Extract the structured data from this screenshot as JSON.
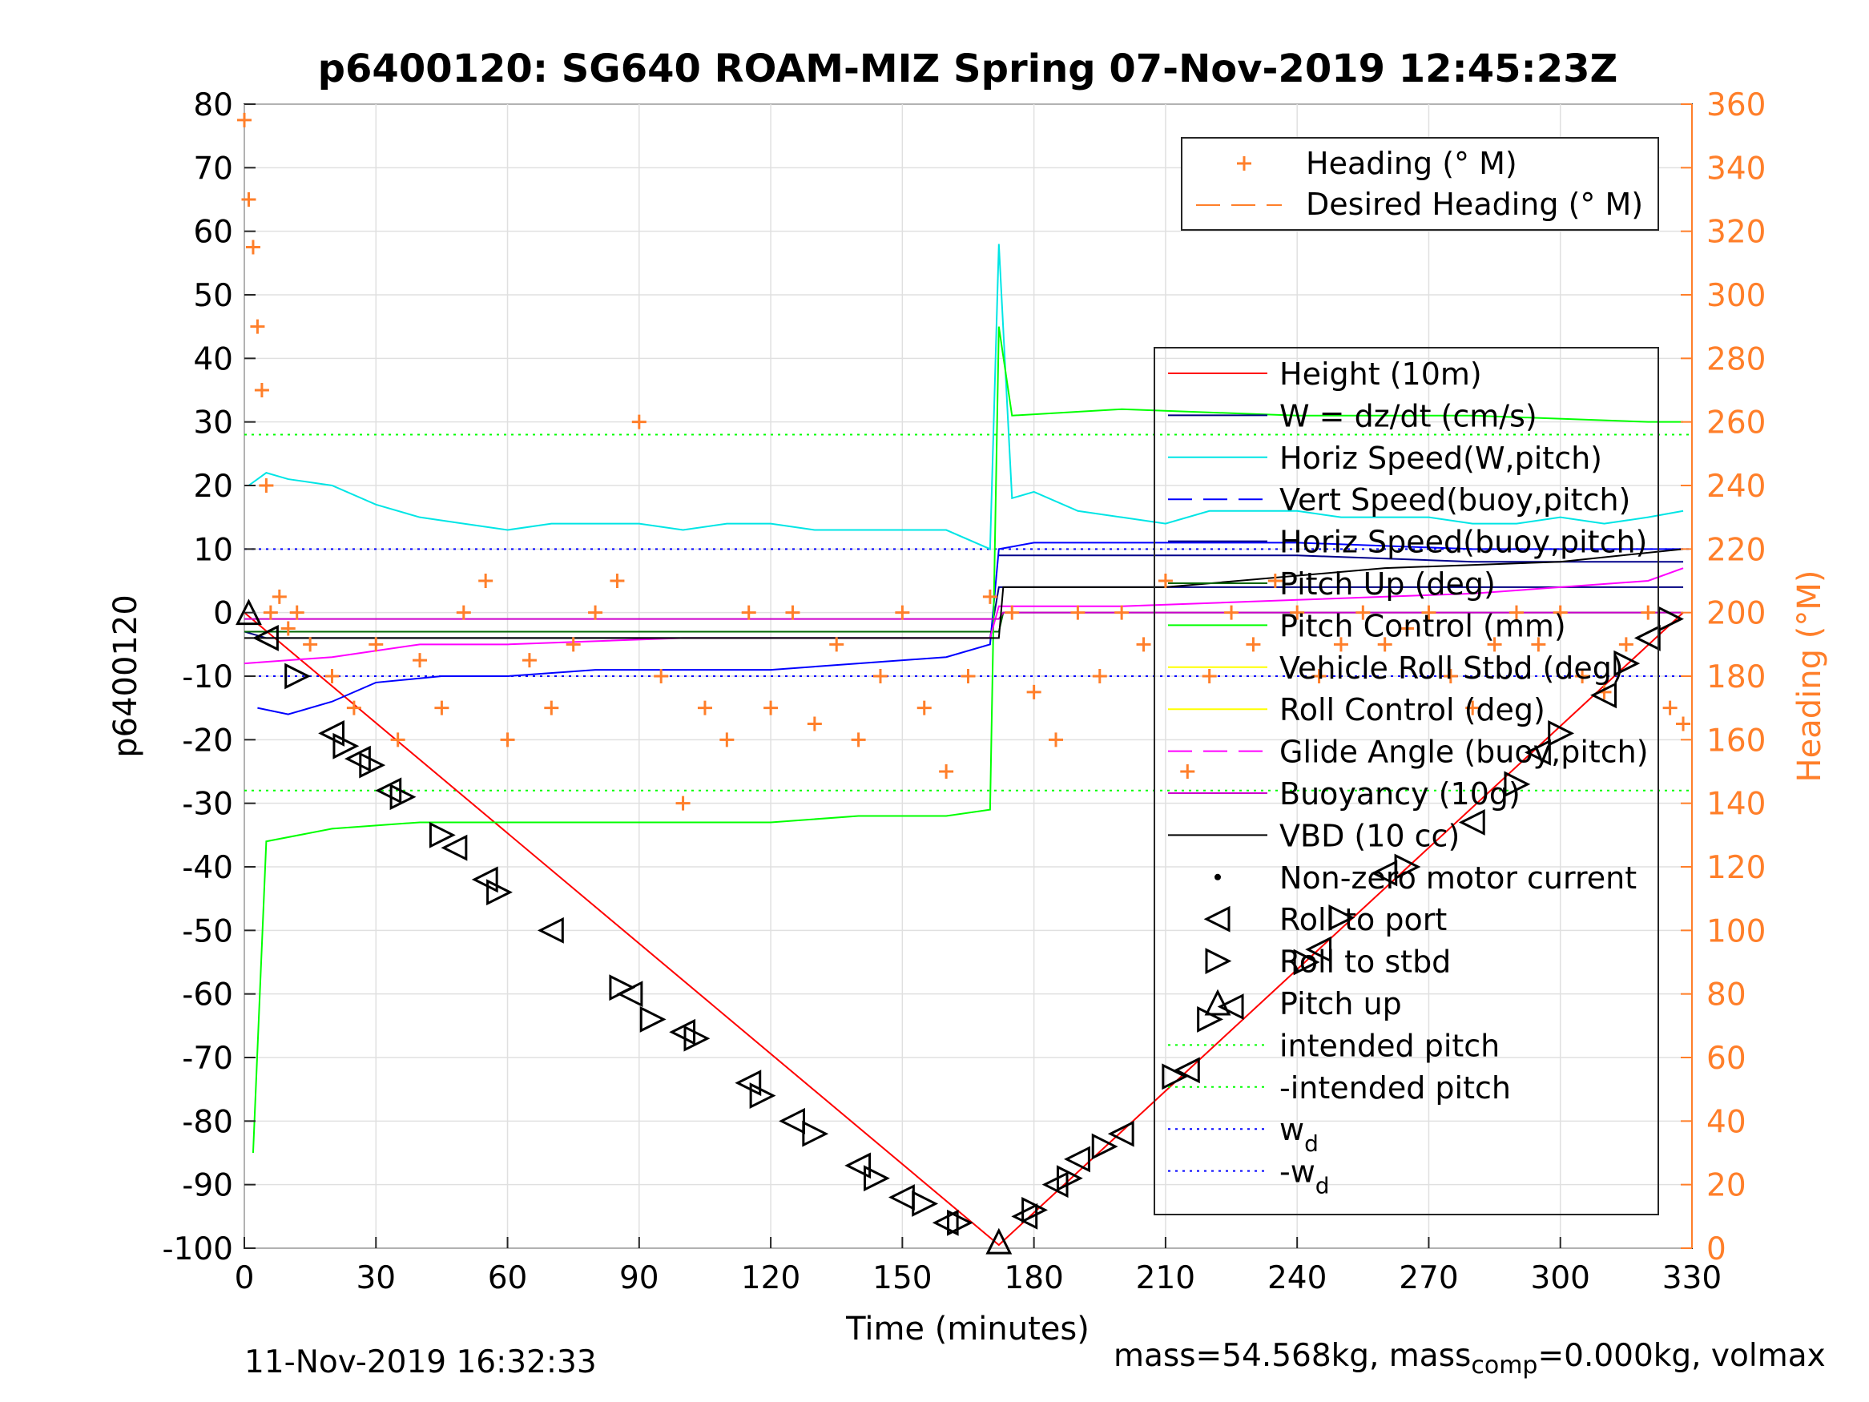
{
  "chart_data": {
    "type": "line",
    "title": "p6400120: SG640 ROAM-MIZ Spring 07-Nov-2019 12:45:23Z",
    "xlabel": "Time (minutes)",
    "ylabel_left": "p6400120",
    "ylabel_right": "Heading (°M)",
    "xlim": [
      0,
      330
    ],
    "ylim_left": [
      -100,
      80
    ],
    "ylim_right": [
      0,
      360
    ],
    "xticks": [
      "0",
      "30",
      "60",
      "90",
      "120",
      "150",
      "180",
      "210",
      "240",
      "270",
      "300",
      "330"
    ],
    "yticks_left": [
      "80",
      "70",
      "60",
      "50",
      "40",
      "30",
      "20",
      "10",
      "0",
      "-10",
      "-20",
      "-30",
      "-40",
      "-50",
      "-60",
      "-70",
      "-80",
      "-90",
      "-100"
    ],
    "yticks_right": [
      "360",
      "340",
      "320",
      "300",
      "280",
      "260",
      "240",
      "220",
      "200",
      "180",
      "160",
      "140",
      "120",
      "100",
      "80",
      "60",
      "40",
      "20",
      "0"
    ],
    "grid": true,
    "colors": {
      "height": "#ff0000",
      "w": "#000080",
      "horiz_speed": "#00e5e5",
      "vert_speed_buoy": "#0000ff",
      "horiz_speed_buoy": "#00008b",
      "pitch_up": "#006400",
      "pitch_control": "#00ff00",
      "vehicle_roll": "#ffff00",
      "roll_control": "#ffff00",
      "glide_angle": "#ff00ff",
      "buoyancy": "#cc00cc",
      "vbd": "#000000",
      "heading": "#ff7f2a",
      "intended_pitch": "#00ff00",
      "wd": "#0000ff"
    },
    "legend_heading": {
      "position": "top-right",
      "entries": [
        "Heading (° M)",
        "Desired Heading (° M)"
      ]
    },
    "legend_main": {
      "position": "right",
      "entries": [
        {
          "label": "Height (10m)"
        },
        {
          "label": "W = dz/dt (cm/s)"
        },
        {
          "label": "Horiz Speed(W,pitch)"
        },
        {
          "label": "Vert Speed(buoy,pitch)"
        },
        {
          "label": "Horiz Speed(buoy,pitch)"
        },
        {
          "label": "Pitch Up (deg)"
        },
        {
          "label": "Pitch Control (mm)"
        },
        {
          "label": "Vehicle Roll Stbd (deg)"
        },
        {
          "label": "Roll Control (deg)"
        },
        {
          "label": "Glide Angle (buoy,pitch)"
        },
        {
          "label": "Buoyancy (10g)"
        },
        {
          "label": "VBD (10 cc)"
        },
        {
          "label": "Non-zero motor current"
        },
        {
          "label": "Roll to port"
        },
        {
          "label": "Roll to stbd"
        },
        {
          "label": "Pitch up"
        },
        {
          "label": "intended pitch"
        },
        {
          "label": "-intended pitch"
        },
        {
          "label": "w",
          "sub": "d"
        },
        {
          "label": "-w",
          "sub": "d"
        }
      ]
    },
    "series": [
      {
        "name": "Height (10m)",
        "x": [
          0,
          172,
          328
        ],
        "y": [
          0,
          -99.5,
          0
        ]
      },
      {
        "name": "Horiz Speed(W,pitch)",
        "x": [
          1,
          5,
          10,
          20,
          30,
          40,
          50,
          60,
          70,
          80,
          90,
          100,
          110,
          120,
          130,
          140,
          150,
          160,
          170,
          172,
          175,
          180,
          190,
          200,
          210,
          220,
          230,
          240,
          250,
          260,
          270,
          280,
          290,
          300,
          310,
          320,
          328
        ],
        "y": [
          20,
          22,
          21,
          20,
          17,
          15,
          14,
          13,
          14,
          14,
          14,
          13,
          14,
          14,
          13,
          13,
          13,
          13,
          10,
          58,
          18,
          19,
          16,
          15,
          14,
          16,
          16,
          16,
          15,
          15,
          15,
          14,
          14,
          15,
          14,
          15,
          16
        ]
      },
      {
        "name": "W = dz/dt (cm/s)",
        "x": [
          0,
          5,
          20,
          60,
          100,
          140,
          170,
          172,
          200,
          240,
          280,
          320,
          328
        ],
        "y": [
          -3,
          -4,
          -4,
          -4,
          -4,
          -4,
          -4,
          4,
          4,
          4,
          4,
          4,
          4
        ]
      },
      {
        "name": "Vert Speed(buoy,pitch)",
        "x": [
          3,
          10,
          20,
          30,
          45,
          60,
          80,
          100,
          120,
          140,
          160,
          170,
          172,
          180,
          200,
          240,
          280,
          320,
          328
        ],
        "y": [
          -15,
          -16,
          -14,
          -11,
          -10,
          -10,
          -9,
          -9,
          -9,
          -8,
          -7,
          -5,
          10,
          11,
          11,
          11,
          10,
          10,
          10
        ]
      },
      {
        "name": "Horiz Speed(buoy,pitch)",
        "x": [
          172,
          200,
          240,
          280,
          328
        ],
        "y": [
          9,
          9,
          9,
          8,
          8
        ]
      },
      {
        "name": "Pitch Up (deg)",
        "x": [
          0,
          172,
          173,
          200,
          240,
          280,
          328
        ],
        "y": [
          -3,
          -3,
          0,
          0,
          0,
          0,
          0
        ]
      },
      {
        "name": "Pitch Control (mm)",
        "x": [
          2,
          5,
          20,
          40,
          60,
          80,
          100,
          120,
          140,
          160,
          170,
          172,
          175,
          200,
          240,
          280,
          320,
          328
        ],
        "y": [
          -85,
          -36,
          -34,
          -33,
          -33,
          -33,
          -33,
          -33,
          -32,
          -32,
          -31,
          45,
          31,
          32,
          31,
          31,
          30,
          30
        ]
      },
      {
        "name": "Glide Angle (buoy,pitch)",
        "x": [
          0,
          20,
          40,
          60,
          100,
          140,
          170,
          172,
          200,
          240,
          280,
          320,
          328
        ],
        "y": [
          -8,
          -7,
          -5,
          -5,
          -4,
          -4,
          -4,
          1,
          1,
          2,
          3,
          5,
          7
        ]
      },
      {
        "name": "Buoyancy (10g)",
        "x": [
          0,
          172,
          173,
          328
        ],
        "y": [
          -1,
          -1,
          0,
          0
        ]
      },
      {
        "name": "VBD (10 cc)",
        "x": [
          0,
          172,
          173,
          210,
          260,
          300,
          328
        ],
        "y": [
          -4,
          -4,
          4,
          4,
          7,
          8,
          10
        ]
      },
      {
        "name": "Heading (° M)",
        "axis": "right",
        "x": [
          0,
          1,
          2,
          3,
          4,
          5,
          6,
          8,
          10,
          12,
          15,
          20,
          25,
          30,
          35,
          40,
          45,
          50,
          55,
          60,
          65,
          70,
          75,
          80,
          85,
          90,
          95,
          100,
          105,
          110,
          115,
          120,
          125,
          130,
          135,
          140,
          145,
          150,
          155,
          160,
          165,
          170,
          175,
          180,
          185,
          190,
          195,
          200,
          205,
          210,
          215,
          220,
          225,
          230,
          235,
          240,
          245,
          250,
          255,
          260,
          265,
          270,
          275,
          280,
          285,
          290,
          295,
          300,
          305,
          310,
          315,
          320,
          325,
          328
        ],
        "y": [
          355,
          330,
          315,
          290,
          270,
          240,
          200,
          205,
          195,
          200,
          190,
          180,
          170,
          190,
          160,
          185,
          170,
          200,
          210,
          160,
          185,
          170,
          190,
          200,
          210,
          260,
          180,
          140,
          170,
          160,
          200,
          170,
          200,
          165,
          190,
          160,
          180,
          200,
          170,
          150,
          180,
          205,
          200,
          175,
          160,
          200,
          180,
          200,
          190,
          210,
          150,
          180,
          200,
          190,
          210,
          200,
          180,
          190,
          200,
          190,
          195,
          200,
          180,
          170,
          190,
          200,
          190,
          200,
          180,
          175,
          190,
          200,
          170,
          165
        ]
      }
    ],
    "markers": {
      "roll_to_port": {
        "x": [
          5,
          20,
          26,
          33,
          48,
          55,
          70,
          88,
          100,
          115,
          125,
          140,
          150,
          160,
          178,
          185,
          190,
          200,
          215,
          225,
          245,
          260,
          280,
          295,
          310,
          320
        ],
        "y": [
          -4,
          -19,
          -23,
          -28,
          -37,
          -42,
          -50,
          -60,
          -66,
          -74,
          -80,
          -87,
          -92,
          -96,
          -95,
          -90,
          -86,
          -82,
          -72,
          -62,
          -53,
          -41,
          -33,
          -22,
          -13,
          -4
        ]
      },
      "roll_to_stbd": {
        "x": [
          12,
          23,
          29,
          36,
          45,
          58,
          86,
          93,
          103,
          118,
          130,
          144,
          155,
          163,
          180,
          188,
          196,
          212,
          220,
          242,
          250,
          265,
          290,
          300,
          315,
          325
        ],
        "y": [
          -10,
          -21,
          -24,
          -29,
          -35,
          -44,
          -59,
          -64,
          -67,
          -76,
          -82,
          -89,
          -93,
          -96,
          -94,
          -89,
          -84,
          -73,
          -64,
          -55,
          -48,
          -40,
          -27,
          -19,
          -8,
          -1
        ]
      },
      "pitch_up": {
        "x": [
          1,
          172
        ],
        "y": [
          0,
          -99
        ]
      }
    },
    "reference_lines": {
      "intended_pitch": 28,
      "neg_intended_pitch": -28,
      "wd": 10,
      "neg_wd": -10
    }
  },
  "footer": {
    "timestamp": "11-Nov-2019 16:32:33",
    "mass_pre": "mass=54.568kg, mass",
    "mass_sub": "comp",
    "mass_post": "=0.000kg, volmax"
  }
}
